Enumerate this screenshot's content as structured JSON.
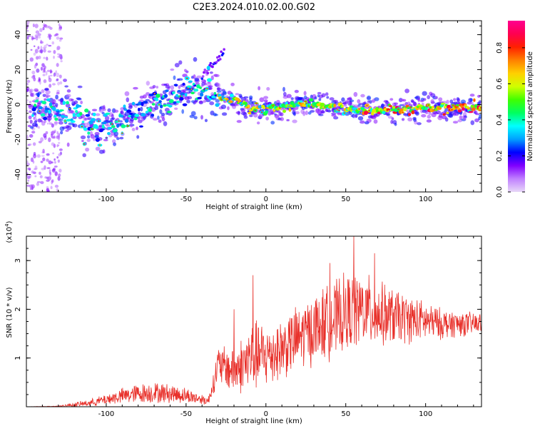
{
  "figure": {
    "title": "C2E3.2024.010.02.00.G02"
  },
  "chart_data": [
    {
      "type": "heatmap",
      "xlabel": "Height of straight line (km)",
      "ylabel": "Frequency (Hz)",
      "xlim": [
        -150,
        135
      ],
      "ylim": [
        -50,
        48
      ],
      "xticks": [
        -100,
        -50,
        0,
        50,
        100
      ],
      "yticks": [
        -40,
        -20,
        0,
        20,
        40
      ],
      "colorbar": {
        "label": "Normalized spectral amplitude",
        "range": [
          0,
          0.95
        ],
        "ticks": [
          0.0,
          0.2,
          0.4,
          0.6,
          0.8
        ],
        "colors": [
          "#e8d8f8",
          "#c080ff",
          "#8000ff",
          "#0000ff",
          "#00a0ff",
          "#00ffff",
          "#00ff60",
          "#40ff00",
          "#d0ff00",
          "#ffd000",
          "#ff8000",
          "#ff2000",
          "#ff0050",
          "#ff0090"
        ]
      },
      "ridge": {
        "x": [
          -148,
          -140,
          -130,
          -120,
          -113,
          -100,
          -90,
          -80,
          -70,
          -60,
          -50,
          -45,
          -40,
          -36,
          -33,
          -30,
          -25,
          -20,
          -15,
          -10,
          -5,
          0,
          10,
          20,
          30,
          40,
          50,
          60,
          70,
          80,
          90,
          100,
          110,
          120,
          130,
          135
        ],
        "y": [
          -2,
          -2,
          -3,
          -3,
          -14,
          -12,
          -10,
          -5,
          0,
          4,
          9,
          11,
          5,
          8,
          7,
          5,
          2,
          3,
          1,
          -3,
          -2,
          -3,
          -1,
          0,
          0,
          -1,
          -3,
          -3,
          -4,
          -3,
          -2,
          -2,
          -2,
          -2,
          -2,
          -2
        ]
      },
      "spur": {
        "x": [
          -40,
          -35,
          -30,
          -26
        ],
        "y": [
          16,
          21,
          26,
          31
        ]
      },
      "noise_band_x": [
        -150,
        -128
      ]
    },
    {
      "type": "line",
      "xlabel": "Height of straight line (km)",
      "ylabel": "SNR (10 * v/v)",
      "yunit": "(x10",
      "yunit_exp": "4",
      "yunit_close": ")",
      "xlim": [
        -150,
        135
      ],
      "ylim": [
        0,
        3.5
      ],
      "xticks": [
        -100,
        -50,
        0,
        50,
        100
      ],
      "yticks": [
        1,
        2,
        3
      ],
      "color": "#e8302a",
      "envelope": {
        "x": [
          -150,
          -130,
          -120,
          -110,
          -100,
          -90,
          -80,
          -70,
          -60,
          -50,
          -40,
          -36,
          -32,
          -30,
          -25,
          -20,
          -15,
          -10,
          -5,
          0,
          10,
          20,
          30,
          40,
          50,
          60,
          70,
          80,
          90,
          100,
          110,
          120,
          135
        ],
        "mean": [
          0.0,
          0.01,
          0.04,
          0.08,
          0.15,
          0.22,
          0.27,
          0.29,
          0.27,
          0.23,
          0.15,
          0.12,
          0.6,
          0.85,
          0.8,
          0.75,
          0.85,
          1.0,
          1.05,
          1.05,
          1.2,
          1.4,
          1.6,
          1.75,
          1.9,
          2.0,
          1.9,
          1.85,
          1.8,
          1.75,
          1.7,
          1.7,
          1.7
        ],
        "amp": [
          0.0,
          0.01,
          0.05,
          0.08,
          0.12,
          0.18,
          0.22,
          0.24,
          0.22,
          0.18,
          0.12,
          0.1,
          0.3,
          0.45,
          0.5,
          0.55,
          0.65,
          0.8,
          0.8,
          0.75,
          0.7,
          0.75,
          0.8,
          0.85,
          0.9,
          0.85,
          0.75,
          0.65,
          0.55,
          0.45,
          0.35,
          0.3,
          0.25
        ]
      },
      "peaks": [
        {
          "x": 55,
          "y": 3.52
        },
        {
          "x": -8,
          "y": 2.7
        },
        {
          "x": 68,
          "y": 3.15
        },
        {
          "x": 40,
          "y": 2.95
        },
        {
          "x": -20,
          "y": 2.0
        }
      ]
    }
  ]
}
